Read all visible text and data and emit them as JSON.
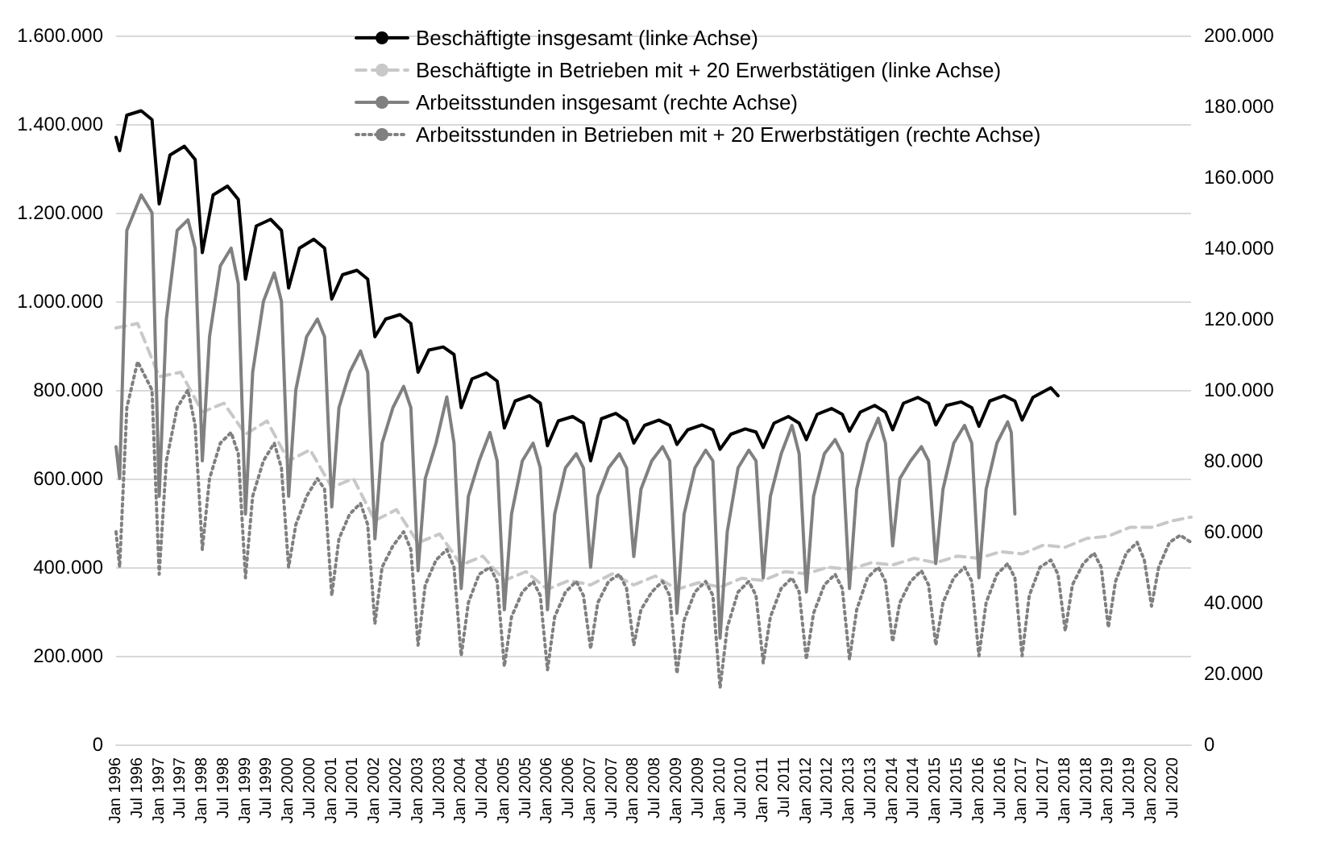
{
  "chart_data": {
    "type": "line",
    "legend": "top",
    "grid": "y",
    "marker": "none",
    "xlim": [
      "1996-01",
      "2020-12"
    ],
    "xticks": [
      {
        "value": "1996-01",
        "label": "Jan 1996"
      },
      {
        "value": "1996-07",
        "label": "Jul 1996"
      },
      {
        "value": "1997-01",
        "label": "Jan 1997"
      },
      {
        "value": "1997-07",
        "label": "Jul 1997"
      },
      {
        "value": "1998-01",
        "label": "Jan 1998"
      },
      {
        "value": "1998-07",
        "label": "Jul 1998"
      },
      {
        "value": "1999-01",
        "label": "Jan 1999"
      },
      {
        "value": "1999-07",
        "label": "Jul 1999"
      },
      {
        "value": "2000-01",
        "label": "Jan 2000"
      },
      {
        "value": "2000-07",
        "label": "Jul 2000"
      },
      {
        "value": "2001-01",
        "label": "Jan 2001"
      },
      {
        "value": "2001-07",
        "label": "Jul 2001"
      },
      {
        "value": "2002-01",
        "label": "Jan 2002"
      },
      {
        "value": "2002-07",
        "label": "Jul 2002"
      },
      {
        "value": "2003-01",
        "label": "Jan 2003"
      },
      {
        "value": "2003-07",
        "label": "Jul 2003"
      },
      {
        "value": "2004-01",
        "label": "Jan 2004"
      },
      {
        "value": "2004-07",
        "label": "Jul 2004"
      },
      {
        "value": "2005-01",
        "label": "Jan 2005"
      },
      {
        "value": "2005-07",
        "label": "Jul 2005"
      },
      {
        "value": "2006-01",
        "label": "Jan 2006"
      },
      {
        "value": "2006-07",
        "label": "Jul 2006"
      },
      {
        "value": "2007-01",
        "label": "Jan 2007"
      },
      {
        "value": "2007-07",
        "label": "Jul 2007"
      },
      {
        "value": "2008-01",
        "label": "Jan 2008"
      },
      {
        "value": "2008-07",
        "label": "Jul 2008"
      },
      {
        "value": "2009-01",
        "label": "Jan 2009"
      },
      {
        "value": "2009-07",
        "label": "Jul 2009"
      },
      {
        "value": "2010-01",
        "label": "Jan 2010"
      },
      {
        "value": "2010-07",
        "label": "Jul 2010"
      },
      {
        "value": "2011-01",
        "label": "Jan 2011"
      },
      {
        "value": "2011-07",
        "label": "Jul 2011"
      },
      {
        "value": "2012-01",
        "label": "Jan 2012"
      },
      {
        "value": "2012-07",
        "label": "Jul 2012"
      },
      {
        "value": "2013-01",
        "label": "Jan 2013"
      },
      {
        "value": "2013-07",
        "label": "Jul 2013"
      },
      {
        "value": "2014-01",
        "label": "Jan 2014"
      },
      {
        "value": "2014-07",
        "label": "Jul 2014"
      },
      {
        "value": "2015-01",
        "label": "Jan 2015"
      },
      {
        "value": "2015-07",
        "label": "Jul 2015"
      },
      {
        "value": "2016-01",
        "label": "Jan 2016"
      },
      {
        "value": "2016-07",
        "label": "Jul 2016"
      },
      {
        "value": "2017-01",
        "label": "Jan 2017"
      },
      {
        "value": "2017-07",
        "label": "Jul 2017"
      },
      {
        "value": "2018-01",
        "label": "Jan 2018"
      },
      {
        "value": "2018-07",
        "label": "Jul 2018"
      },
      {
        "value": "2019-01",
        "label": "Jan 2019"
      },
      {
        "value": "2019-07",
        "label": "Jul 2019"
      },
      {
        "value": "2020-01",
        "label": "Jan 2020"
      },
      {
        "value": "2020-07",
        "label": "Jul 2020"
      }
    ],
    "ylim": [
      0,
      1600000
    ],
    "yticks": [
      {
        "value": 0,
        "label": "0"
      },
      {
        "value": 200000,
        "label": "200.000"
      },
      {
        "value": 400000,
        "label": "400.000"
      },
      {
        "value": 600000,
        "label": "600.000"
      },
      {
        "value": 800000,
        "label": "800.000"
      },
      {
        "value": 1000000,
        "label": "1.000.000"
      },
      {
        "value": 1200000,
        "label": "1.200.000"
      },
      {
        "value": 1400000,
        "label": "1.400.000"
      },
      {
        "value": 1600000,
        "label": "1.600.000"
      }
    ],
    "y2lim": [
      0,
      200000
    ],
    "y2ticks": [
      {
        "value": 0,
        "label": "0"
      },
      {
        "value": 20000,
        "label": "20.000"
      },
      {
        "value": 40000,
        "label": "40.000"
      },
      {
        "value": 60000,
        "label": "60.000"
      },
      {
        "value": 80000,
        "label": "80.000"
      },
      {
        "value": 100000,
        "label": "100.000"
      },
      {
        "value": 120000,
        "label": "120.000"
      },
      {
        "value": 140000,
        "label": "140.000"
      },
      {
        "value": 160000,
        "label": "160.000"
      },
      {
        "value": 180000,
        "label": "180.000"
      },
      {
        "value": 200000,
        "label": "200.000"
      }
    ],
    "series": [
      {
        "name": "Beschäftigte insgesamt (linke Achse)",
        "color": "#000000",
        "line_style": "solid",
        "x": [
          "1996-01",
          "1996-02",
          "1996-04",
          "1996-08",
          "1996-11",
          "1997-01",
          "1997-04",
          "1997-08",
          "1997-11",
          "1998-01",
          "1998-04",
          "1998-08",
          "1998-11",
          "1999-01",
          "1999-04",
          "1999-08",
          "1999-11",
          "2000-01",
          "2000-04",
          "2000-08",
          "2000-11",
          "2001-01",
          "2001-04",
          "2001-08",
          "2001-11",
          "2002-01",
          "2002-04",
          "2002-08",
          "2002-11",
          "2003-01",
          "2003-04",
          "2003-08",
          "2003-11",
          "2004-01",
          "2004-04",
          "2004-08",
          "2004-11",
          "2005-01",
          "2005-04",
          "2005-08",
          "2005-11",
          "2006-01",
          "2006-04",
          "2006-08",
          "2006-11",
          "2007-01",
          "2007-04",
          "2007-08",
          "2007-11",
          "2008-01",
          "2008-04",
          "2008-08",
          "2008-11",
          "2009-01",
          "2009-04",
          "2009-08",
          "2009-11",
          "2010-01",
          "2010-04",
          "2010-08",
          "2010-11",
          "2011-01",
          "2011-04",
          "2011-08",
          "2011-11",
          "2012-01",
          "2012-04",
          "2012-08",
          "2012-11",
          "2013-01",
          "2013-04",
          "2013-08",
          "2013-11",
          "2014-01",
          "2014-04",
          "2014-08",
          "2014-11",
          "2015-01",
          "2015-04",
          "2015-08",
          "2015-11",
          "2016-01",
          "2016-04",
          "2016-08",
          "2016-11",
          "2017-01",
          "2017-04",
          "2017-09",
          "2017-11"
        ],
        "values": [
          1370000,
          1340000,
          1420000,
          1430000,
          1410000,
          1220000,
          1330000,
          1350000,
          1320000,
          1110000,
          1240000,
          1260000,
          1230000,
          1050000,
          1170000,
          1185000,
          1160000,
          1030000,
          1120000,
          1140000,
          1120000,
          1005000,
          1060000,
          1070000,
          1050000,
          920000,
          960000,
          970000,
          950000,
          840000,
          890000,
          897000,
          880000,
          760000,
          825000,
          838000,
          820000,
          714000,
          775000,
          787000,
          770000,
          674000,
          730000,
          740000,
          725000,
          640000,
          735000,
          747000,
          730000,
          680000,
          720000,
          732000,
          720000,
          677000,
          710000,
          721000,
          710000,
          666000,
          700000,
          712000,
          705000,
          670000,
          725000,
          740000,
          725000,
          688000,
          745000,
          758000,
          745000,
          707000,
          750000,
          765000,
          750000,
          710000,
          770000,
          783000,
          770000,
          721000,
          765000,
          773000,
          760000,
          718000,
          775000,
          787000,
          775000,
          732000,
          783000,
          805000,
          787000
        ]
      },
      {
        "name": "Beschäftigte in Betrieben mit + 20 Erwerbstätigen (linke Achse)",
        "color": "#c8c8c8",
        "line_style": "dashed",
        "x": [
          "1996-01",
          "1996-07",
          "1997-01",
          "1997-07",
          "1998-01",
          "1998-07",
          "1999-01",
          "1999-07",
          "2000-01",
          "2000-07",
          "2001-01",
          "2001-07",
          "2002-01",
          "2002-07",
          "2003-01",
          "2003-07",
          "2004-01",
          "2004-07",
          "2005-01",
          "2005-07",
          "2006-01",
          "2006-07",
          "2007-01",
          "2007-07",
          "2008-01",
          "2008-07",
          "2009-01",
          "2009-07",
          "2010-01",
          "2010-07",
          "2011-01",
          "2011-07",
          "2012-01",
          "2012-07",
          "2013-01",
          "2013-07",
          "2014-01",
          "2014-07",
          "2015-01",
          "2015-07",
          "2016-01",
          "2016-07",
          "2017-01",
          "2017-07",
          "2018-01",
          "2018-07",
          "2019-01",
          "2019-07",
          "2020-01",
          "2020-07",
          "2020-12"
        ],
        "values": [
          940000,
          950000,
          830000,
          840000,
          750000,
          770000,
          700000,
          730000,
          640000,
          665000,
          580000,
          600000,
          505000,
          530000,
          455000,
          475000,
          405000,
          425000,
          370000,
          390000,
          350000,
          370000,
          360000,
          385000,
          360000,
          380000,
          350000,
          365000,
          355000,
          375000,
          370000,
          390000,
          385000,
          400000,
          395000,
          410000,
          405000,
          420000,
          410000,
          425000,
          420000,
          435000,
          430000,
          450000,
          445000,
          465000,
          470000,
          490000,
          490000,
          505000,
          513000
        ]
      },
      {
        "name": "Arbeitsstunden insgesamt (rechte Achse)",
        "color": "#808080",
        "line_style": "solid",
        "axis": "y2",
        "x": [
          "1996-01",
          "1996-02",
          "1996-04",
          "1996-06",
          "1996-08",
          "1996-11",
          "1997-01",
          "1997-03",
          "1997-06",
          "1997-09",
          "1997-11",
          "1998-01",
          "1998-03",
          "1998-06",
          "1998-09",
          "1998-11",
          "1999-01",
          "1999-03",
          "1999-06",
          "1999-09",
          "1999-11",
          "2000-01",
          "2000-03",
          "2000-06",
          "2000-09",
          "2000-11",
          "2001-01",
          "2001-03",
          "2001-06",
          "2001-09",
          "2001-11",
          "2002-01",
          "2002-03",
          "2002-06",
          "2002-09",
          "2002-11",
          "2003-01",
          "2003-03",
          "2003-06",
          "2003-09",
          "2003-11",
          "2004-01",
          "2004-03",
          "2004-06",
          "2004-09",
          "2004-11",
          "2005-01",
          "2005-03",
          "2005-06",
          "2005-09",
          "2005-11",
          "2006-01",
          "2006-03",
          "2006-06",
          "2006-09",
          "2006-11",
          "2007-01",
          "2007-03",
          "2007-06",
          "2007-09",
          "2007-11",
          "2008-01",
          "2008-03",
          "2008-06",
          "2008-09",
          "2008-11",
          "2009-01",
          "2009-03",
          "2009-06",
          "2009-09",
          "2009-11",
          "2010-01",
          "2010-03",
          "2010-06",
          "2010-09",
          "2010-11",
          "2011-01",
          "2011-03",
          "2011-06",
          "2011-09",
          "2011-11",
          "2012-01",
          "2012-03",
          "2012-06",
          "2012-09",
          "2012-11",
          "2013-01",
          "2013-03",
          "2013-06",
          "2013-09",
          "2013-11",
          "2014-01",
          "2014-03",
          "2014-06",
          "2014-09",
          "2014-11",
          "2015-01",
          "2015-03",
          "2015-06",
          "2015-09",
          "2015-11",
          "2016-01",
          "2016-03",
          "2016-06",
          "2016-09",
          "2016-10",
          "2016-11"
        ],
        "values": [
          84000,
          75000,
          145000,
          150000,
          155000,
          150000,
          70000,
          120000,
          145000,
          148000,
          140000,
          80000,
          115000,
          135000,
          140000,
          130000,
          65000,
          105000,
          125000,
          133000,
          125000,
          70000,
          100000,
          115000,
          120000,
          115000,
          67000,
          95000,
          105000,
          111000,
          105000,
          58000,
          85000,
          95000,
          101000,
          95000,
          49000,
          75000,
          85000,
          98000,
          85000,
          44000,
          70000,
          80000,
          88000,
          80000,
          38000,
          65000,
          80000,
          85000,
          78000,
          38000,
          65000,
          78000,
          82000,
          78000,
          50000,
          70000,
          78000,
          82000,
          78000,
          53000,
          72000,
          80000,
          84000,
          80000,
          37000,
          65000,
          78000,
          83000,
          80000,
          30000,
          60000,
          78000,
          83000,
          80000,
          47000,
          70000,
          82000,
          90000,
          82000,
          43000,
          70000,
          82000,
          86000,
          82000,
          44000,
          72000,
          85000,
          92000,
          85000,
          56000,
          75000,
          80000,
          84000,
          80000,
          51000,
          72000,
          85000,
          90000,
          85000,
          47000,
          72000,
          85000,
          91000,
          88000,
          65000
        ]
      },
      {
        "name": "Arbeitsstunden in Betrieben mit + 20 Erwerbstätigen (rechte Achse)",
        "color": "#808080",
        "line_style": "dotted",
        "axis": "y2",
        "x": [
          "1996-01",
          "1996-02",
          "1996-04",
          "1996-07",
          "1996-11",
          "1997-01",
          "1997-03",
          "1997-06",
          "1997-09",
          "1997-11",
          "1998-01",
          "1998-03",
          "1998-06",
          "1998-09",
          "1998-11",
          "1999-01",
          "1999-03",
          "1999-06",
          "1999-09",
          "1999-11",
          "2000-01",
          "2000-03",
          "2000-06",
          "2000-09",
          "2000-11",
          "2001-01",
          "2001-03",
          "2001-06",
          "2001-09",
          "2001-11",
          "2002-01",
          "2002-03",
          "2002-06",
          "2002-09",
          "2002-11",
          "2003-01",
          "2003-03",
          "2003-06",
          "2003-09",
          "2003-11",
          "2004-01",
          "2004-03",
          "2004-06",
          "2004-09",
          "2004-11",
          "2005-01",
          "2005-03",
          "2005-06",
          "2005-09",
          "2005-11",
          "2006-01",
          "2006-03",
          "2006-06",
          "2006-09",
          "2006-11",
          "2007-01",
          "2007-03",
          "2007-06",
          "2007-09",
          "2007-11",
          "2008-01",
          "2008-03",
          "2008-06",
          "2008-09",
          "2008-11",
          "2009-01",
          "2009-03",
          "2009-06",
          "2009-09",
          "2009-11",
          "2010-01",
          "2010-03",
          "2010-06",
          "2010-09",
          "2010-11",
          "2011-01",
          "2011-03",
          "2011-06",
          "2011-09",
          "2011-11",
          "2012-01",
          "2012-03",
          "2012-06",
          "2012-09",
          "2012-11",
          "2013-01",
          "2013-03",
          "2013-06",
          "2013-09",
          "2013-11",
          "2014-01",
          "2014-03",
          "2014-06",
          "2014-09",
          "2014-11",
          "2015-01",
          "2015-03",
          "2015-06",
          "2015-09",
          "2015-11",
          "2016-01",
          "2016-03",
          "2016-06",
          "2016-09",
          "2016-11",
          "2017-01",
          "2017-03",
          "2017-06",
          "2017-09",
          "2017-11",
          "2018-01",
          "2018-03",
          "2018-06",
          "2018-09",
          "2018-11",
          "2019-01",
          "2019-03",
          "2019-06",
          "2019-09",
          "2019-11",
          "2020-01",
          "2020-03",
          "2020-06",
          "2020-09",
          "2020-12"
        ],
        "values": [
          60000,
          50000,
          95000,
          108000,
          100000,
          48000,
          80000,
          95000,
          100000,
          90000,
          55000,
          75000,
          85000,
          88000,
          82000,
          47000,
          70000,
          80000,
          85000,
          78000,
          50000,
          62000,
          70000,
          75000,
          72000,
          42000,
          58000,
          65000,
          68000,
          62000,
          34000,
          50000,
          56000,
          60000,
          55000,
          28000,
          45000,
          52000,
          55000,
          50000,
          25000,
          40000,
          48000,
          50000,
          46000,
          22000,
          36000,
          43000,
          46000,
          42000,
          21000,
          36000,
          43000,
          46000,
          42000,
          27000,
          40000,
          46000,
          48000,
          44000,
          28000,
          38000,
          43000,
          46000,
          42000,
          20000,
          35000,
          43000,
          46000,
          42000,
          16000,
          33000,
          43000,
          46000,
          42000,
          23000,
          36000,
          44000,
          47000,
          43000,
          24000,
          37000,
          45000,
          48000,
          44000,
          24000,
          38000,
          47000,
          50000,
          46000,
          29000,
          40000,
          46000,
          49000,
          45000,
          28000,
          40000,
          47000,
          50000,
          46000,
          25000,
          40000,
          48000,
          51000,
          47000,
          25000,
          42000,
          50000,
          52000,
          48000,
          32000,
          45000,
          51000,
          54000,
          50000,
          33000,
          46000,
          54000,
          57000,
          52000,
          39000,
          50000,
          57000,
          59000,
          57000
        ]
      }
    ]
  }
}
